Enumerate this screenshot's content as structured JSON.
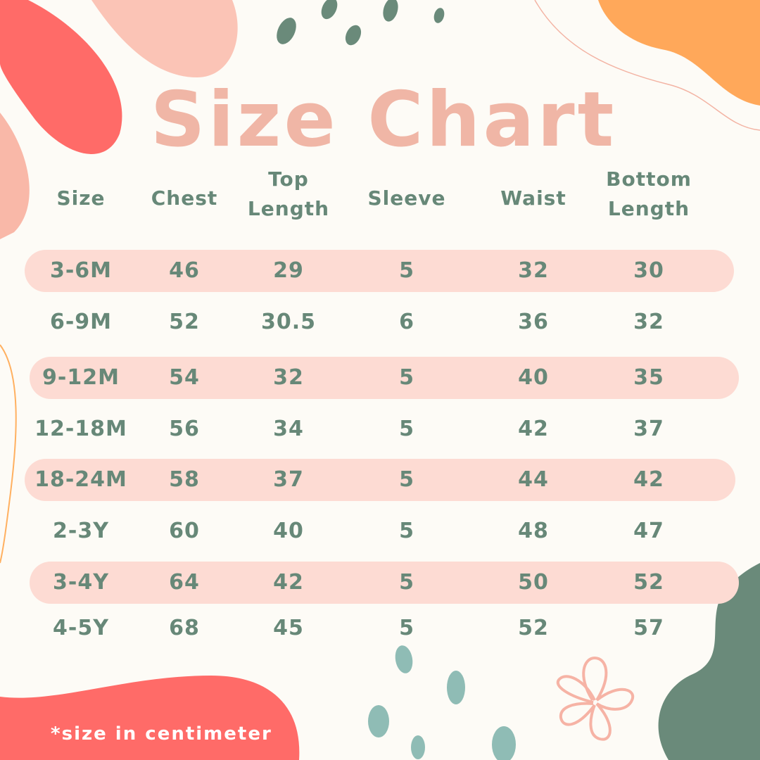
{
  "title": "Size Chart",
  "table": {
    "header": [
      "Size",
      "Chest",
      "Top Length",
      "Sleeve",
      "Waist",
      "Bottom Length"
    ],
    "rows": [
      [
        "3-6M",
        46,
        29,
        5,
        32,
        30
      ],
      [
        "6-9M",
        52,
        30.5,
        6,
        36,
        32
      ],
      [
        "9-12M",
        54,
        32,
        5,
        40,
        35
      ],
      [
        "12-18M",
        56,
        34,
        5,
        42,
        37
      ],
      [
        "18-24M",
        58,
        37,
        5,
        44,
        42
      ],
      [
        "2-3Y",
        60,
        40,
        5,
        48,
        47
      ],
      [
        "3-4Y",
        64,
        42,
        5,
        50,
        52
      ],
      [
        "4-5Y",
        68,
        45,
        5,
        52,
        57
      ]
    ]
  },
  "footnote": "*size in centimeter"
}
